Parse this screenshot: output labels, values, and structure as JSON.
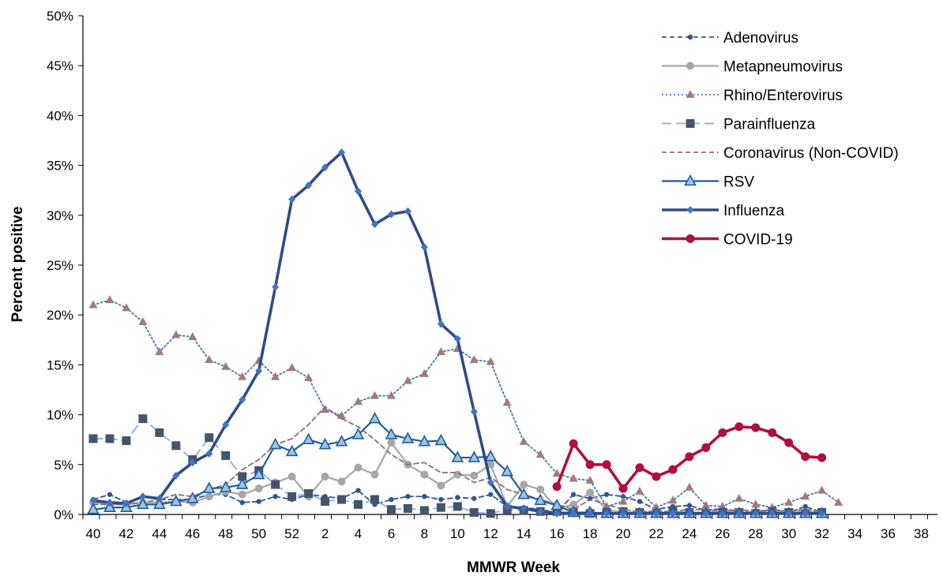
{
  "chart_data": {
    "type": "line",
    "xlabel": "MMWR Week",
    "ylabel": "Percent positive",
    "ylim": [
      0,
      50
    ],
    "y_ticks": [
      "0%",
      "5%",
      "10%",
      "15%",
      "20%",
      "25%",
      "30%",
      "35%",
      "40%",
      "45%",
      "50%"
    ],
    "x_tick_labels": [
      "40",
      "42",
      "44",
      "46",
      "48",
      "50",
      "52",
      "2",
      "4",
      "6",
      "8",
      "10",
      "12",
      "14",
      "16",
      "18",
      "20",
      "22",
      "24",
      "26",
      "28",
      "30",
      "32",
      "34",
      "36",
      "38"
    ],
    "weeks": [
      "40",
      "41",
      "42",
      "43",
      "44",
      "45",
      "46",
      "47",
      "48",
      "49",
      "50",
      "51",
      "52",
      "1",
      "2",
      "3",
      "4",
      "5",
      "6",
      "7",
      "8",
      "9",
      "10",
      "11",
      "12",
      "13",
      "14",
      "15",
      "16",
      "17",
      "18",
      "19",
      "20",
      "21",
      "22",
      "23",
      "24",
      "25",
      "26",
      "27",
      "28",
      "29",
      "30",
      "31",
      "32",
      "33",
      "34",
      "35",
      "36",
      "37",
      "38",
      "39"
    ],
    "legend_position": "top-right",
    "grid": false,
    "series": [
      {
        "name": "Adenovirus",
        "color": "#2f5597",
        "line": "dashed",
        "marker": "circle-small",
        "values": [
          1.5,
          2.0,
          1.2,
          1.8,
          1.5,
          1.5,
          1.5,
          2.0,
          2.0,
          1.2,
          1.3,
          1.8,
          1.5,
          2.0,
          1.8,
          1.6,
          2.4,
          1.0,
          1.5,
          1.8,
          1.8,
          1.5,
          1.7,
          1.6,
          2.0,
          0.8,
          0.7,
          0.5,
          0.2,
          2.0,
          1.6,
          2.0,
          1.8,
          1.3,
          0.5,
          0.8,
          0.9,
          0.4,
          0.6,
          0.3,
          0.2,
          0.5,
          0.2,
          0.8,
          0.2
        ]
      },
      {
        "name": "Metapneumovirus",
        "color": "#a6a6a6",
        "line": "solid",
        "marker": "circle",
        "values": [
          1.2,
          1.0,
          1.0,
          1.2,
          1.2,
          1.3,
          1.2,
          1.8,
          2.3,
          2.0,
          2.6,
          3.2,
          3.8,
          1.8,
          3.8,
          3.3,
          4.7,
          4.0,
          7.2,
          5.0,
          4.0,
          2.9,
          4.0,
          3.9,
          5.0,
          0.8,
          3.0,
          2.5,
          0.6,
          1.0,
          2.2,
          0.5,
          0.2,
          0.2,
          0.2,
          0.2,
          0.2,
          0.2,
          0.3,
          0.2,
          0.2,
          0.2,
          0.2,
          0.3,
          0.2
        ]
      },
      {
        "name": "Rhino/Enterovirus",
        "color": "#4472c4",
        "line": "dotted",
        "marker": "triangle",
        "marker_color": "#9e7b7f",
        "values": [
          21.0,
          21.5,
          20.7,
          19.3,
          16.3,
          18.0,
          17.8,
          15.5,
          14.8,
          13.8,
          15.4,
          13.8,
          14.7,
          13.7,
          10.5,
          9.9,
          11.3,
          11.9,
          11.9,
          13.4,
          14.1,
          16.3,
          16.6,
          15.5,
          15.3,
          11.2,
          7.3,
          6.0,
          4.1,
          3.6,
          3.4,
          0.8,
          1.3,
          2.3,
          0.7,
          1.4,
          2.7,
          0.9,
          0.8,
          1.6,
          1.0,
          0.7,
          1.2,
          1.8,
          2.4,
          1.2
        ]
      },
      {
        "name": "Parainfluenza",
        "color": "#8eaadb",
        "line": "dashed-long",
        "marker": "square",
        "marker_color": "#44546a",
        "values": [
          7.6,
          7.6,
          7.4,
          9.6,
          8.2,
          6.9,
          5.5,
          7.7,
          5.9,
          3.8,
          4.4,
          3.0,
          1.8,
          2.1,
          1.3,
          1.5,
          1.0,
          1.5,
          0.5,
          0.6,
          0.4,
          0.7,
          0.8,
          0.2,
          0.1,
          0.5,
          0.4,
          0.3,
          0.3,
          0.2,
          0.1,
          0.2,
          0.3,
          0.2,
          0.1,
          0.3,
          0.2,
          0.1,
          0.2,
          0.2,
          0.1,
          0.3,
          0.2,
          0.1,
          0.2
        ]
      },
      {
        "name": "Coronavirus (Non-COVID)",
        "color": "#8c6d73",
        "line": "dashed",
        "marker": "none",
        "values": [
          1.0,
          1.0,
          1.0,
          1.2,
          1.5,
          2.0,
          1.8,
          2.5,
          3.0,
          4.5,
          5.5,
          7.0,
          7.6,
          9.0,
          10.8,
          9.6,
          8.8,
          7.5,
          6.0,
          5.0,
          5.2,
          4.2,
          4.2,
          3.2,
          3.7,
          2.5,
          2.0,
          1.5,
          1.0,
          0.5,
          1.5,
          1.0,
          0.5,
          0.3,
          0.3,
          0.3,
          0.5,
          0.5,
          0.3,
          0.5,
          0.3,
          0.5,
          0.3,
          0.5,
          0.3
        ]
      },
      {
        "name": "RSV",
        "color": "#1f5c99",
        "line": "solid",
        "marker": "triangle-open",
        "marker_fill": "#9dc3e6",
        "values": [
          0.5,
          0.7,
          0.7,
          1.0,
          1.0,
          1.3,
          1.6,
          2.6,
          2.7,
          3.0,
          4.0,
          7.0,
          6.3,
          7.5,
          7.0,
          7.3,
          8.0,
          9.6,
          8.0,
          7.6,
          7.3,
          7.4,
          5.7,
          5.7,
          5.8,
          4.3,
          2.0,
          1.4,
          0.9,
          0.2,
          0.2,
          0.1,
          0.1,
          0.1,
          0.1,
          0.1,
          0.1,
          0.1,
          0.1,
          0.1,
          0.1,
          0.1,
          0.1,
          0.1,
          0.1
        ]
      },
      {
        "name": "Influenza",
        "color": "#2e4c87",
        "line": "solid-thick",
        "marker": "diamond",
        "marker_color": "#4472c4",
        "values": [
          1.4,
          1.2,
          1.1,
          1.8,
          1.6,
          3.9,
          5.2,
          6.1,
          9.0,
          11.5,
          14.4,
          22.8,
          31.6,
          33.0,
          34.8,
          36.3,
          32.4,
          29.1,
          30.1,
          30.4,
          26.8,
          19.1,
          17.6,
          10.3,
          3.2,
          0.8,
          0.6,
          0.3,
          0.1,
          0.1,
          0.1,
          0.1,
          0.1,
          0.1,
          0.1,
          0.1,
          0.1,
          0.1,
          0.1,
          0.1,
          0.1,
          0.1,
          0.1,
          0.1,
          0.1
        ]
      },
      {
        "name": "COVID-19",
        "color": "#b0103c",
        "line": "solid-thick",
        "marker": "circle",
        "start_index": 28,
        "values": [
          2.8,
          7.1,
          5.0,
          5.0,
          2.6,
          4.7,
          3.8,
          4.5,
          5.8,
          6.7,
          8.2,
          8.8,
          8.7,
          8.2,
          7.2,
          5.8,
          5.7
        ]
      }
    ]
  }
}
